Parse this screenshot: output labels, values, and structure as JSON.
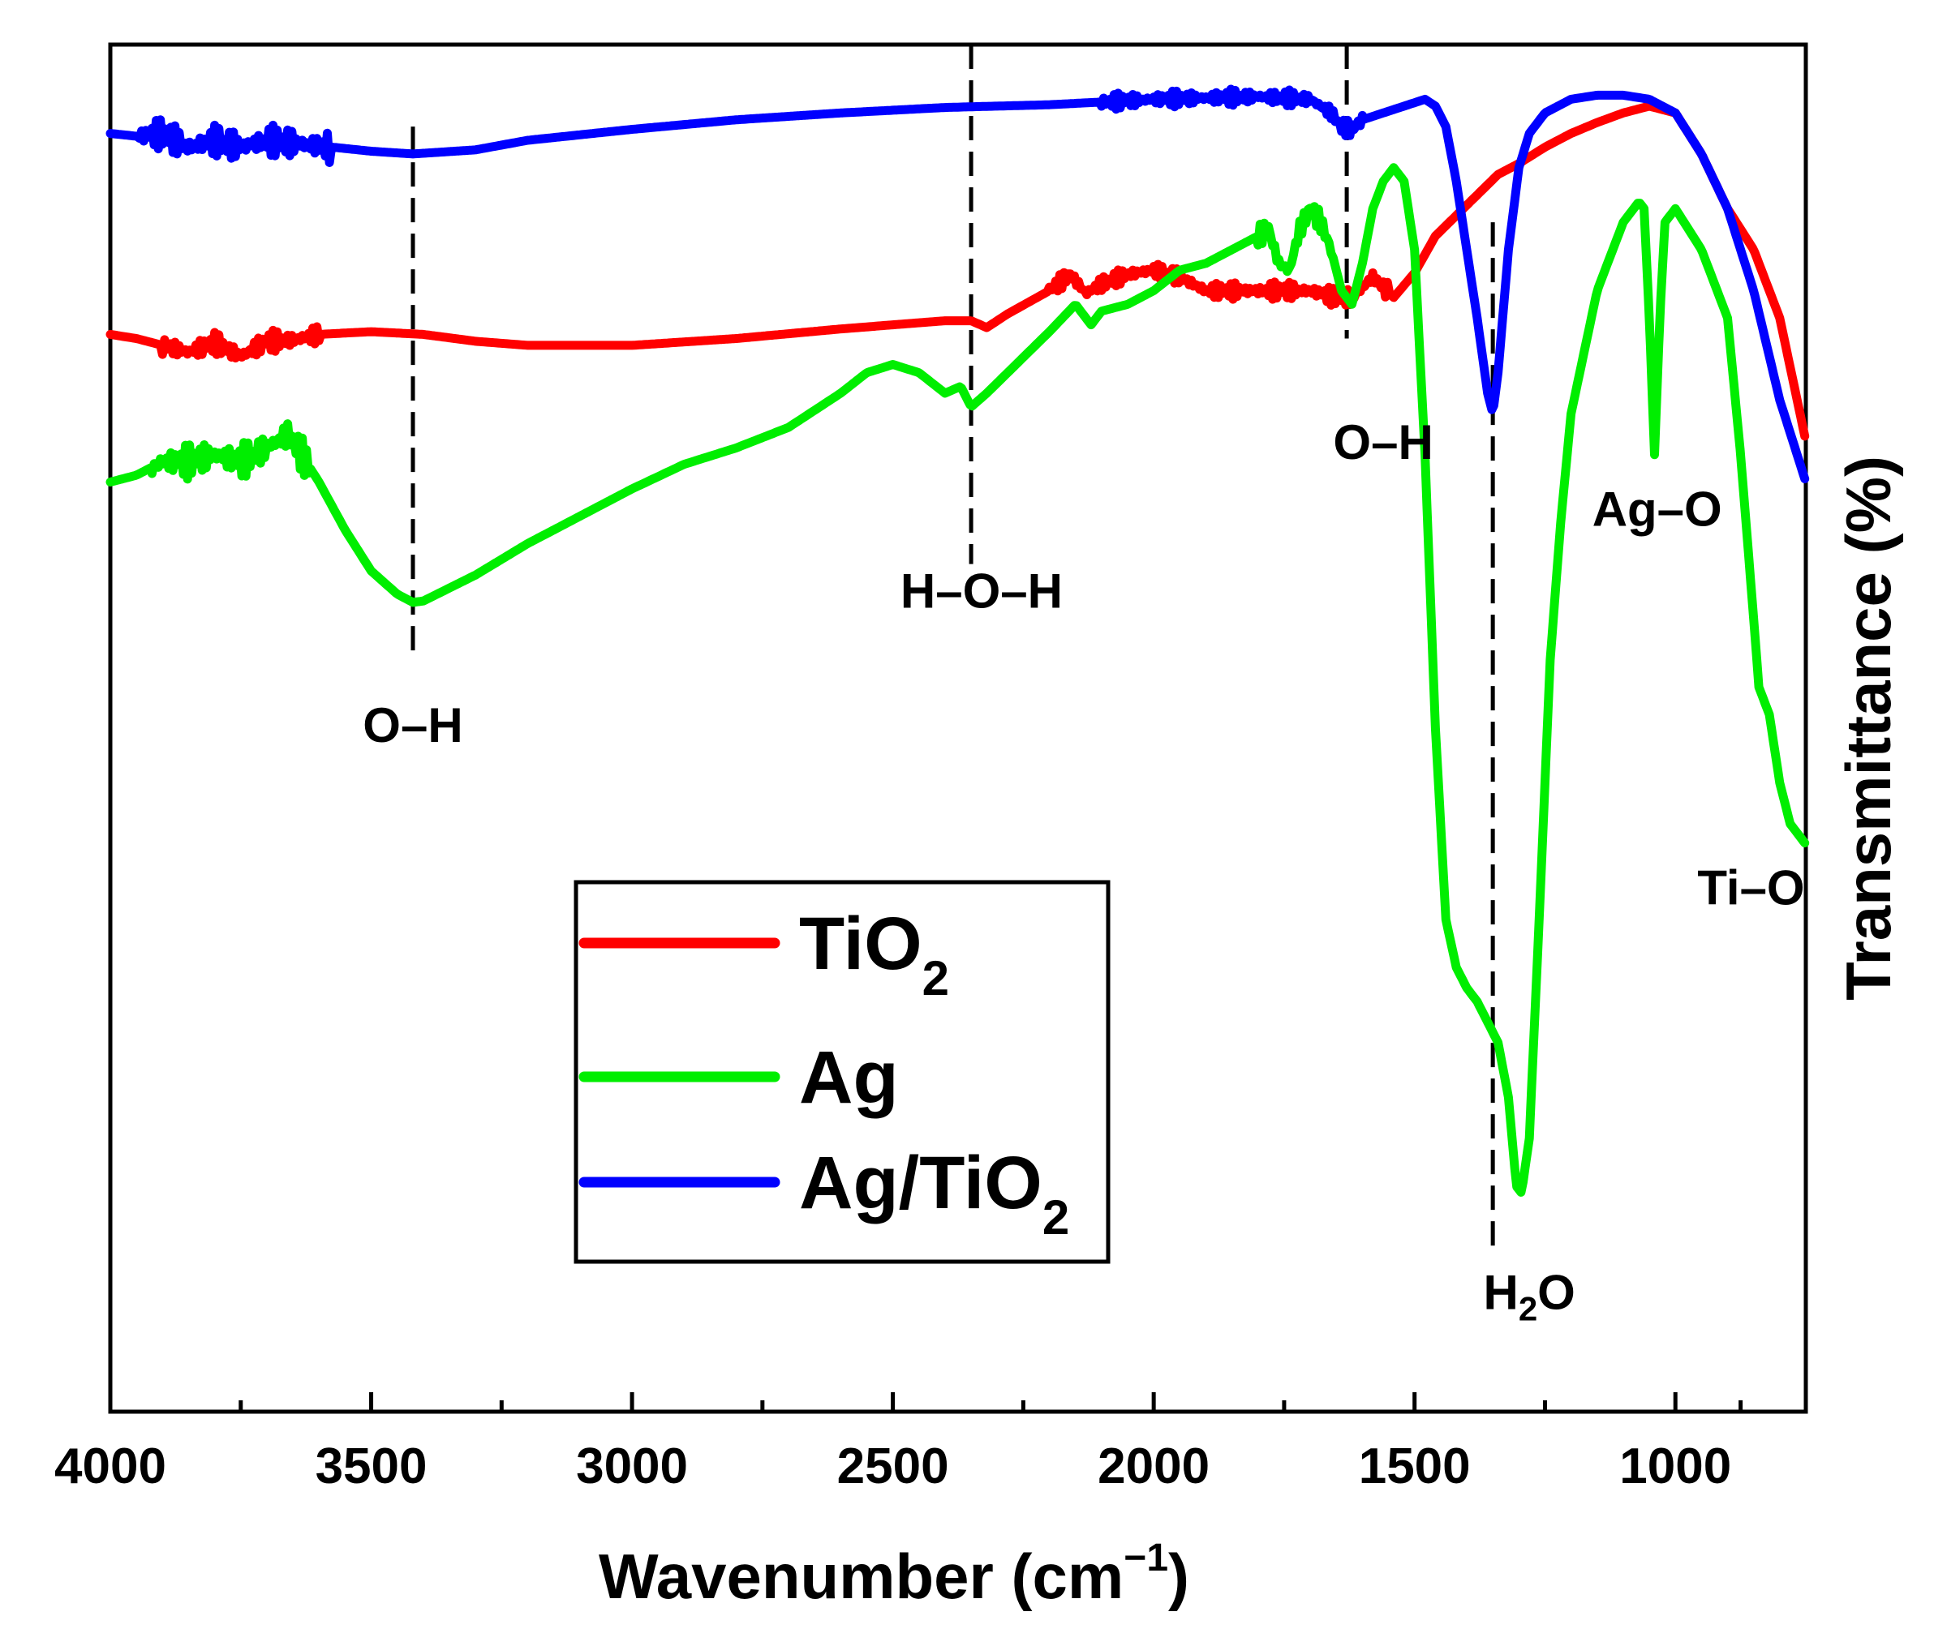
{
  "chart_data": {
    "type": "line",
    "title": "",
    "xlabel": "Wavenumber (cm−1)",
    "xlabel_parts": {
      "main": "Wavenumber (cm",
      "sup": "−1",
      "close": ")"
    },
    "ylabel": "Transmittance (%)",
    "xlim": [
      4000,
      750
    ],
    "x_reversed": true,
    "ylim": [
      0,
      100
    ],
    "y_ticks_shown": false,
    "x_ticks": [
      4000,
      3500,
      3000,
      2500,
      2000,
      1500,
      1000
    ],
    "x_tick_labels": [
      "4000",
      "3500",
      "3000",
      "2500",
      "2000",
      "1500",
      "1000"
    ],
    "x_minor_ticks": [
      3750,
      3250,
      2750,
      2250,
      1750,
      1250,
      875
    ],
    "grid": false,
    "legend_position": "bottom-center",
    "series": [
      {
        "name": "TiO2",
        "legend_main": "TiO",
        "legend_sub": "2",
        "color": "#ff0000",
        "noise": [
          [
            3900,
            3600,
            0.8
          ],
          [
            2200,
            1850,
            0.6
          ],
          [
            1850,
            1550,
            0.7
          ]
        ],
        "points": [
          [
            4000,
            78.8
          ],
          [
            3950,
            78.5
          ],
          [
            3900,
            78.0
          ],
          [
            3850,
            77.5
          ],
          [
            3800,
            78.2
          ],
          [
            3750,
            77.2
          ],
          [
            3700,
            78.3
          ],
          [
            3650,
            78.4
          ],
          [
            3600,
            78.8
          ],
          [
            3500,
            79.0
          ],
          [
            3400,
            78.8
          ],
          [
            3300,
            78.3
          ],
          [
            3200,
            78.0
          ],
          [
            3000,
            78.0
          ],
          [
            2800,
            78.5
          ],
          [
            2600,
            79.2
          ],
          [
            2400,
            79.8
          ],
          [
            2350,
            79.8
          ],
          [
            2320,
            79.3
          ],
          [
            2280,
            80.3
          ],
          [
            2200,
            82.0
          ],
          [
            2160,
            83.2
          ],
          [
            2130,
            81.8
          ],
          [
            2100,
            82.5
          ],
          [
            2050,
            83.2
          ],
          [
            2000,
            83.5
          ],
          [
            1950,
            83.0
          ],
          [
            1900,
            82.0
          ],
          [
            1800,
            82.0
          ],
          [
            1700,
            82.0
          ],
          [
            1650,
            81.5
          ],
          [
            1620,
            81.5
          ],
          [
            1580,
            83.0
          ],
          [
            1540,
            81.5
          ],
          [
            1500,
            83.3
          ],
          [
            1460,
            86.0
          ],
          [
            1420,
            87.5
          ],
          [
            1380,
            89.0
          ],
          [
            1340,
            90.5
          ],
          [
            1300,
            91.3
          ],
          [
            1250,
            92.5
          ],
          [
            1200,
            93.5
          ],
          [
            1150,
            94.3
          ],
          [
            1100,
            95.0
          ],
          [
            1050,
            95.5
          ],
          [
            1000,
            95.0
          ],
          [
            950,
            92.0
          ],
          [
            900,
            88.0
          ],
          [
            850,
            85.0
          ],
          [
            800,
            80.0
          ],
          [
            750,
            71.0
          ]
        ]
      },
      {
        "name": "Ag",
        "legend_main": "Ag",
        "legend_sub": "",
        "color": "#00ee00",
        "noise": [
          [
            3920,
            3620,
            1.3
          ],
          [
            1800,
            1660,
            0.8
          ]
        ],
        "points": [
          [
            4000,
            68.0
          ],
          [
            3950,
            68.5
          ],
          [
            3900,
            69.5
          ],
          [
            3850,
            69.5
          ],
          [
            3800,
            70.0
          ],
          [
            3750,
            69.5
          ],
          [
            3700,
            70.5
          ],
          [
            3660,
            71.5
          ],
          [
            3650,
            71.0
          ],
          [
            3600,
            68.0
          ],
          [
            3550,
            64.5
          ],
          [
            3500,
            61.5
          ],
          [
            3450,
            59.8
          ],
          [
            3420,
            59.2
          ],
          [
            3400,
            59.3
          ],
          [
            3300,
            61.2
          ],
          [
            3200,
            63.5
          ],
          [
            3100,
            65.5
          ],
          [
            3000,
            67.5
          ],
          [
            2900,
            69.3
          ],
          [
            2800,
            70.5
          ],
          [
            2700,
            72.0
          ],
          [
            2600,
            74.5
          ],
          [
            2550,
            76.0
          ],
          [
            2500,
            76.6
          ],
          [
            2450,
            76.0
          ],
          [
            2400,
            74.5
          ],
          [
            2370,
            75.0
          ],
          [
            2350,
            73.5
          ],
          [
            2320,
            74.5
          ],
          [
            2280,
            76.0
          ],
          [
            2200,
            79.0
          ],
          [
            2150,
            81.0
          ],
          [
            2120,
            79.5
          ],
          [
            2100,
            80.5
          ],
          [
            2050,
            81.0
          ],
          [
            2000,
            82.0
          ],
          [
            1950,
            83.5
          ],
          [
            1900,
            84.0
          ],
          [
            1850,
            85.0
          ],
          [
            1800,
            86.0
          ],
          [
            1780,
            86.5
          ],
          [
            1760,
            84.0
          ],
          [
            1740,
            83.5
          ],
          [
            1720,
            86.5
          ],
          [
            1700,
            88.0
          ],
          [
            1680,
            87.0
          ],
          [
            1660,
            85.0
          ],
          [
            1640,
            82.0
          ],
          [
            1620,
            81.0
          ],
          [
            1600,
            84.0
          ],
          [
            1580,
            88.0
          ],
          [
            1560,
            90.0
          ],
          [
            1540,
            91.0
          ],
          [
            1520,
            90.0
          ],
          [
            1500,
            85.0
          ],
          [
            1480,
            70.0
          ],
          [
            1460,
            50.0
          ],
          [
            1440,
            36.0
          ],
          [
            1420,
            32.5
          ],
          [
            1400,
            31.0
          ],
          [
            1380,
            30.0
          ],
          [
            1360,
            28.5
          ],
          [
            1340,
            27.0
          ],
          [
            1320,
            23.0
          ],
          [
            1305,
            16.5
          ],
          [
            1295,
            16.0
          ],
          [
            1280,
            20.0
          ],
          [
            1260,
            37.0
          ],
          [
            1240,
            55.0
          ],
          [
            1220,
            65.0
          ],
          [
            1200,
            73.0
          ],
          [
            1150,
            82.0
          ],
          [
            1100,
            87.0
          ],
          [
            1070,
            88.5
          ],
          [
            1060,
            88.0
          ],
          [
            1050,
            80.0
          ],
          [
            1040,
            70.0
          ],
          [
            1030,
            80.0
          ],
          [
            1020,
            87.0
          ],
          [
            1000,
            88.0
          ],
          [
            950,
            85.0
          ],
          [
            900,
            80.0
          ],
          [
            875,
            70.0
          ],
          [
            850,
            58.0
          ],
          [
            840,
            53.0
          ],
          [
            820,
            51.0
          ],
          [
            800,
            46.0
          ],
          [
            780,
            43.0
          ],
          [
            750,
            41.5
          ]
        ]
      },
      {
        "name": "Ag/TiO2",
        "legend_main": "Ag/TiO",
        "legend_sub": "2",
        "color": "#0000ff",
        "noise": [
          [
            3950,
            3580,
            1.2
          ],
          [
            2100,
            1600,
            0.6
          ]
        ],
        "points": [
          [
            4000,
            93.5
          ],
          [
            3950,
            93.3
          ],
          [
            3900,
            93.5
          ],
          [
            3850,
            92.5
          ],
          [
            3800,
            93.0
          ],
          [
            3750,
            92.5
          ],
          [
            3700,
            93.0
          ],
          [
            3650,
            92.8
          ],
          [
            3600,
            92.6
          ],
          [
            3500,
            92.2
          ],
          [
            3420,
            92.0
          ],
          [
            3300,
            92.3
          ],
          [
            3200,
            93.0
          ],
          [
            3000,
            93.8
          ],
          [
            2800,
            94.5
          ],
          [
            2600,
            95.0
          ],
          [
            2500,
            95.2
          ],
          [
            2400,
            95.4
          ],
          [
            2200,
            95.6
          ],
          [
            2000,
            96.0
          ],
          [
            1800,
            96.2
          ],
          [
            1700,
            96.0
          ],
          [
            1660,
            95.0
          ],
          [
            1640,
            94.0
          ],
          [
            1620,
            93.8
          ],
          [
            1600,
            94.5
          ],
          [
            1560,
            95.0
          ],
          [
            1520,
            95.5
          ],
          [
            1480,
            96.0
          ],
          [
            1460,
            95.5
          ],
          [
            1440,
            94.0
          ],
          [
            1420,
            90.0
          ],
          [
            1400,
            85.0
          ],
          [
            1380,
            80.0
          ],
          [
            1360,
            74.5
          ],
          [
            1350,
            73.0
          ],
          [
            1340,
            76.0
          ],
          [
            1320,
            85.0
          ],
          [
            1300,
            91.0
          ],
          [
            1280,
            93.5
          ],
          [
            1250,
            95.0
          ],
          [
            1200,
            96.0
          ],
          [
            1150,
            96.3
          ],
          [
            1100,
            96.3
          ],
          [
            1050,
            96.0
          ],
          [
            1000,
            95.0
          ],
          [
            950,
            92.0
          ],
          [
            900,
            88.0
          ],
          [
            850,
            82.0
          ],
          [
            800,
            74.0
          ],
          [
            750,
            68.0
          ]
        ]
      }
    ],
    "reference_lines": [
      {
        "x": 3420,
        "y_top": 94.0,
        "y_bottom": 55.0
      },
      {
        "x": 2350,
        "y_top": 100.0,
        "y_bottom": 62.0
      },
      {
        "x": 1630,
        "y_top": 100.0,
        "y_bottom": 78.5
      },
      {
        "x": 1350,
        "y_top": 87.0,
        "y_bottom": 12.0
      }
    ],
    "annotations": [
      {
        "text": "O–H",
        "sub": "",
        "x": 3420,
        "y": 49.0,
        "anchor": "middle"
      },
      {
        "text": "H–O–H",
        "sub": "",
        "x": 2330,
        "y": 58.8,
        "anchor": "middle"
      },
      {
        "text": "O–H",
        "sub": "",
        "x": 1560,
        "y": 69.7,
        "anchor": "middle"
      },
      {
        "text": "Ag–O",
        "sub": "",
        "x": 1035,
        "y": 64.8,
        "anchor": "middle"
      },
      {
        "text": "Ti–O",
        "sub": "",
        "x": 855,
        "y": 37.1,
        "anchor": "middle"
      },
      {
        "text": "H",
        "sub": "2",
        "tail": "O",
        "x": 1280,
        "y": 7.5,
        "anchor": "middle"
      }
    ]
  }
}
